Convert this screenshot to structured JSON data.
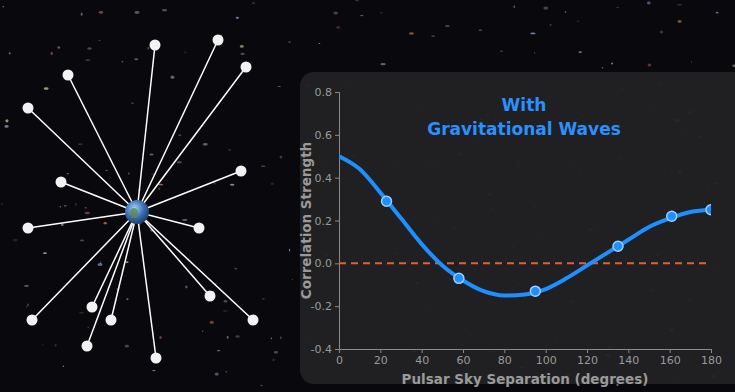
{
  "chart_data": {
    "type": "line",
    "title": [
      "With",
      "Gravitational Waves"
    ],
    "x_label": "Pulsar Sky Separation (degrees)",
    "y_label": "Correlation Strength",
    "series": [
      {
        "type": "line",
        "color": "#1e8fff",
        "line_style": "solid",
        "x": [
          0,
          10,
          20,
          30,
          40,
          50,
          60,
          70,
          80,
          90,
          100,
          110,
          120,
          130,
          140,
          150,
          160,
          170,
          180
        ],
        "values": [
          0.5,
          0.44,
          0.33,
          0.21,
          0.09,
          -0.01,
          -0.08,
          -0.13,
          -0.15,
          -0.145,
          -0.12,
          -0.07,
          -0.01,
          0.05,
          0.11,
          0.17,
          0.21,
          0.24,
          0.25
        ]
      },
      {
        "type": "scatter",
        "color": "#1e8fff",
        "marker": "circle",
        "x": [
          23,
          58,
          95,
          135,
          161,
          180
        ],
        "values": [
          0.29,
          -0.07,
          -0.13,
          0.08,
          0.22,
          0.25
        ]
      }
    ],
    "reference_line": {
      "y": 0,
      "color": "#e0603a",
      "line_style": "dashed"
    },
    "xlim": [
      0,
      180
    ],
    "xticks": [
      0,
      20,
      40,
      60,
      80,
      100,
      120,
      140,
      160,
      180
    ],
    "ylim": [
      -0.4,
      0.8
    ],
    "yticks": [
      -0.4,
      -0.2,
      {
        "value": 0,
        "label": "0.0"
      },
      0.2,
      0.4,
      0.6,
      0.8
    ],
    "grid": false
  }
}
